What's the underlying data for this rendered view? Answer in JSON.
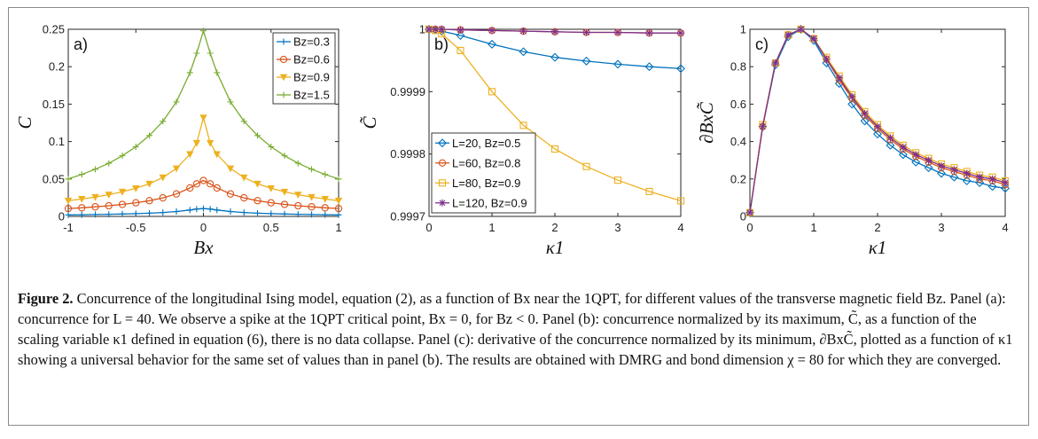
{
  "figure": {
    "caption_title": "Figure 2.",
    "caption_text": "Concurrence of the longitudinal Ising model, equation (2), as a function of Bx near the 1QPT, for different values of the transverse magnetic field Bz. Panel (a): concurrence for L = 40. We observe a spike at the 1QPT critical point, Bx = 0, for Bz < 0. Panel (b): concurrence normalized by its maximum, C̃, as a function of the scaling variable κ1 defined in equation (6), there is no data collapse. Panel (c): derivative of the concurrence normalized by its minimum, ∂BxC̃, plotted as a function of κ1 showing a universal behavior for the same set of values than in panel (b). The results are obtained with DMRG and bond dimension χ = 80 for which they are converged."
  },
  "chart_data": [
    {
      "id": "a",
      "type": "line",
      "panel_label": "a)",
      "xlabel": "Bx",
      "ylabel": "C",
      "xlim": [
        -1,
        1
      ],
      "ylim": [
        0,
        0.25
      ],
      "xticks": [
        -1,
        -0.5,
        0,
        0.5,
        1
      ],
      "xtick_labels": [
        "-1",
        "-0.5",
        "0",
        "0.5",
        "1"
      ],
      "yticks": [
        0,
        0.05,
        0.1,
        0.15,
        0.2,
        0.25
      ],
      "ytick_labels": [
        "0",
        "0.05",
        "0.1",
        "0.15",
        "0.2",
        "0.25"
      ],
      "legend_position": "top-right",
      "grid": false,
      "series": [
        {
          "name": "Bz=0.3",
          "color": "#0072BD",
          "marker": "plus",
          "x": [
            -1,
            -0.9,
            -0.8,
            -0.7,
            -0.6,
            -0.5,
            -0.4,
            -0.3,
            -0.2,
            -0.1,
            -0.05,
            0,
            0.05,
            0.1,
            0.2,
            0.3,
            0.4,
            0.5,
            0.6,
            0.7,
            0.8,
            0.9,
            1
          ],
          "y": [
            0.002,
            0.0022,
            0.0025,
            0.0028,
            0.0032,
            0.0037,
            0.0043,
            0.0052,
            0.0065,
            0.0085,
            0.0098,
            0.0105,
            0.0098,
            0.0085,
            0.0065,
            0.0052,
            0.0043,
            0.0037,
            0.0032,
            0.0028,
            0.0025,
            0.0022,
            0.002
          ]
        },
        {
          "name": "Bz=0.6",
          "color": "#D95319",
          "marker": "circle",
          "x": [
            -1,
            -0.9,
            -0.8,
            -0.7,
            -0.6,
            -0.5,
            -0.4,
            -0.3,
            -0.2,
            -0.1,
            -0.05,
            0,
            0.05,
            0.1,
            0.2,
            0.3,
            0.4,
            0.5,
            0.6,
            0.7,
            0.8,
            0.9,
            1
          ],
          "y": [
            0.0105,
            0.0115,
            0.0128,
            0.0142,
            0.016,
            0.0182,
            0.021,
            0.0248,
            0.03,
            0.038,
            0.0435,
            0.048,
            0.0435,
            0.038,
            0.03,
            0.0248,
            0.021,
            0.0182,
            0.016,
            0.0142,
            0.0128,
            0.0115,
            0.0105
          ]
        },
        {
          "name": "Bz=0.9",
          "color": "#EDB120",
          "marker": "triangle-down",
          "x": [
            -1,
            -0.9,
            -0.8,
            -0.7,
            -0.6,
            -0.5,
            -0.4,
            -0.3,
            -0.2,
            -0.1,
            -0.05,
            0,
            0.05,
            0.1,
            0.2,
            0.3,
            0.4,
            0.5,
            0.6,
            0.7,
            0.8,
            0.9,
            1
          ],
          "y": [
            0.021,
            0.0232,
            0.0258,
            0.029,
            0.0328,
            0.0375,
            0.0435,
            0.052,
            0.064,
            0.083,
            0.098,
            0.132,
            0.098,
            0.083,
            0.064,
            0.052,
            0.0435,
            0.0375,
            0.0328,
            0.029,
            0.0258,
            0.0232,
            0.021
          ]
        },
        {
          "name": "Bz=1.5",
          "color": "#77AC30",
          "marker": "plus",
          "x": [
            -1,
            -0.9,
            -0.8,
            -0.7,
            -0.6,
            -0.5,
            -0.4,
            -0.3,
            -0.2,
            -0.1,
            -0.05,
            0,
            0.05,
            0.1,
            0.2,
            0.3,
            0.4,
            0.5,
            0.6,
            0.7,
            0.8,
            0.9,
            1
          ],
          "y": [
            0.05,
            0.056,
            0.063,
            0.071,
            0.081,
            0.093,
            0.108,
            0.127,
            0.153,
            0.192,
            0.218,
            0.248,
            0.218,
            0.192,
            0.153,
            0.127,
            0.108,
            0.093,
            0.081,
            0.071,
            0.063,
            0.056,
            0.05
          ]
        }
      ]
    },
    {
      "id": "b",
      "type": "line",
      "panel_label": "b)",
      "xlabel": "κ1",
      "ylabel": "C̃",
      "xlim": [
        0,
        4
      ],
      "ylim": [
        0.9997,
        1.0
      ],
      "xticks": [
        0,
        1,
        2,
        3,
        4
      ],
      "xtick_labels": [
        "0",
        "1",
        "2",
        "3",
        "4"
      ],
      "yticks": [
        0.9997,
        0.9998,
        0.9999,
        1.0
      ],
      "ytick_labels": [
        "0.9997",
        "0.9998",
        "0.9999",
        "1"
      ],
      "legend_position": "bottom-left",
      "grid": false,
      "series": [
        {
          "name": "L=20, Bz=0.5",
          "color": "#0072BD",
          "marker": "diamond",
          "x": [
            0,
            0.1,
            0.2,
            0.5,
            1,
            1.5,
            2,
            2.5,
            3,
            3.5,
            4
          ],
          "y": [
            1.0,
            0.999999,
            0.999997,
            0.99999,
            0.999976,
            0.999964,
            0.999955,
            0.999949,
            0.999944,
            0.99994,
            0.999937
          ]
        },
        {
          "name": "L=60, Bz=0.8",
          "color": "#D95319",
          "marker": "circle",
          "x": [
            0,
            0.1,
            0.2,
            0.5,
            1,
            1.5,
            2,
            2.5,
            3,
            3.5,
            4
          ],
          "y": [
            1.0,
            1.0,
            1.0,
            0.999999,
            0.999998,
            0.999997,
            0.999996,
            0.999995,
            0.999995,
            0.999994,
            0.999994
          ]
        },
        {
          "name": "L=80, Bz=0.9",
          "color": "#EDB120",
          "marker": "square",
          "x": [
            0,
            0.1,
            0.2,
            0.5,
            1,
            1.5,
            2,
            2.5,
            3,
            3.5,
            4
          ],
          "y": [
            1.0,
            0.999998,
            0.999993,
            0.999966,
            0.9999,
            0.999846,
            0.999808,
            0.99978,
            0.999758,
            0.99974,
            0.999725
          ]
        },
        {
          "name": "L=120, Bz=0.9",
          "color": "#7E2F8E",
          "marker": "star",
          "x": [
            0,
            0.1,
            0.2,
            0.5,
            1,
            1.5,
            2,
            2.5,
            3,
            3.5,
            4
          ],
          "y": [
            1.0,
            1.0,
            1.0,
            0.999999,
            0.999998,
            0.999997,
            0.999996,
            0.999995,
            0.999995,
            0.999994,
            0.999994
          ]
        }
      ]
    },
    {
      "id": "c",
      "type": "line",
      "panel_label": "c)",
      "xlabel": "κ1",
      "ylabel": "∂BxC̃",
      "xlim": [
        0,
        4
      ],
      "ylim": [
        0,
        1
      ],
      "xticks": [
        0,
        1,
        2,
        3,
        4
      ],
      "xtick_labels": [
        "0",
        "1",
        "2",
        "3",
        "4"
      ],
      "yticks": [
        0,
        0.2,
        0.4,
        0.6,
        0.8,
        1
      ],
      "ytick_labels": [
        "0",
        "0.2",
        "0.4",
        "0.6",
        "0.8",
        "1"
      ],
      "grid": false,
      "series": [
        {
          "name": "L=20, Bz=0.5",
          "color": "#0072BD",
          "marker": "diamond",
          "x": [
            0,
            0.2,
            0.4,
            0.6,
            0.8,
            1.0,
            1.2,
            1.4,
            1.6,
            1.8,
            2.0,
            2.2,
            2.4,
            2.6,
            2.8,
            3.0,
            3.2,
            3.4,
            3.6,
            3.8,
            4.0
          ],
          "y": [
            0.02,
            0.48,
            0.81,
            0.96,
            1.0,
            0.94,
            0.82,
            0.71,
            0.6,
            0.51,
            0.44,
            0.38,
            0.33,
            0.29,
            0.26,
            0.23,
            0.21,
            0.19,
            0.18,
            0.16,
            0.15
          ]
        },
        {
          "name": "L=60, Bz=0.8",
          "color": "#D95319",
          "marker": "circle",
          "x": [
            0,
            0.2,
            0.4,
            0.6,
            0.8,
            1.0,
            1.2,
            1.4,
            1.6,
            1.8,
            2.0,
            2.2,
            2.4,
            2.6,
            2.8,
            3.0,
            3.2,
            3.4,
            3.6,
            3.8,
            4.0
          ],
          "y": [
            0.02,
            0.48,
            0.82,
            0.97,
            1.0,
            0.95,
            0.84,
            0.73,
            0.63,
            0.54,
            0.47,
            0.41,
            0.36,
            0.32,
            0.29,
            0.26,
            0.24,
            0.22,
            0.2,
            0.19,
            0.17
          ]
        },
        {
          "name": "L=80, Bz=0.9",
          "color": "#EDB120",
          "marker": "square",
          "x": [
            0,
            0.2,
            0.4,
            0.6,
            0.8,
            1.0,
            1.2,
            1.4,
            1.6,
            1.8,
            2.0,
            2.2,
            2.4,
            2.6,
            2.8,
            3.0,
            3.2,
            3.4,
            3.6,
            3.8,
            4.0
          ],
          "y": [
            0.02,
            0.49,
            0.82,
            0.97,
            1.0,
            0.95,
            0.85,
            0.75,
            0.65,
            0.56,
            0.49,
            0.43,
            0.38,
            0.34,
            0.31,
            0.28,
            0.26,
            0.24,
            0.22,
            0.21,
            0.19
          ]
        },
        {
          "name": "L=120, Bz=0.9",
          "color": "#7E2F8E",
          "marker": "star",
          "x": [
            0,
            0.2,
            0.4,
            0.6,
            0.8,
            1.0,
            1.2,
            1.4,
            1.6,
            1.8,
            2.0,
            2.2,
            2.4,
            2.6,
            2.8,
            3.0,
            3.2,
            3.4,
            3.6,
            3.8,
            4.0
          ],
          "y": [
            0.02,
            0.48,
            0.82,
            0.97,
            1.0,
            0.95,
            0.84,
            0.74,
            0.64,
            0.55,
            0.48,
            0.42,
            0.37,
            0.33,
            0.3,
            0.27,
            0.25,
            0.23,
            0.21,
            0.2,
            0.18
          ]
        }
      ]
    }
  ]
}
